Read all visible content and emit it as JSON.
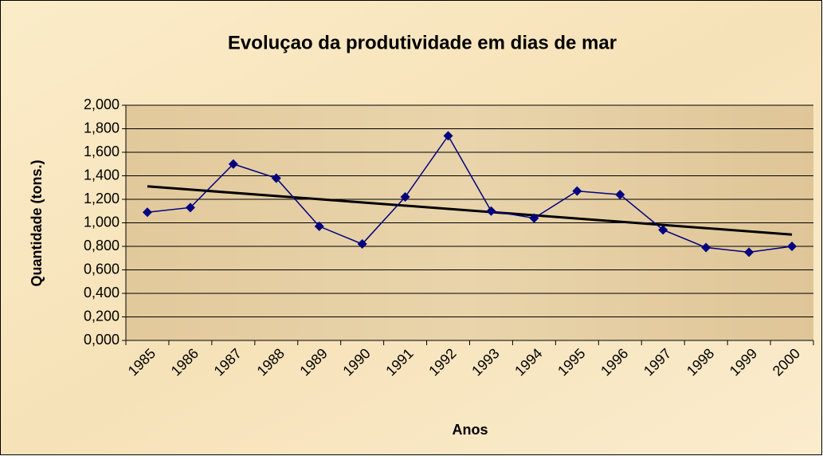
{
  "chart_data": {
    "type": "line",
    "title": "Evoluçao da produtividade em dias de mar",
    "x_label": "Anos",
    "y_label": "Quantidade (tons.)",
    "categories": [
      "1985",
      "1986",
      "1987",
      "1988",
      "1989",
      "1990",
      "1991",
      "1992",
      "1993",
      "1994",
      "1995",
      "1996",
      "1997",
      "1998",
      "1999",
      "2000"
    ],
    "series": [
      {
        "color": "#000080",
        "values": [
          1.09,
          1.13,
          1.5,
          1.38,
          0.97,
          0.82,
          1.22,
          1.74,
          1.1,
          1.04,
          1.27,
          1.24,
          0.94,
          0.79,
          0.75,
          0.8
        ]
      }
    ],
    "trendline": {
      "color": "#000000",
      "values": [
        1.31,
        0.9
      ]
    },
    "ylim": [
      0,
      2
    ],
    "yticks": [
      {
        "value": 0,
        "label": "0,000"
      },
      {
        "value": 0.2,
        "label": "0,200"
      },
      {
        "value": 0.4,
        "label": "0,400"
      },
      {
        "value": 0.6,
        "label": "0,600"
      },
      {
        "value": 0.8,
        "label": "0,800"
      },
      {
        "value": 1,
        "label": "1,000"
      },
      {
        "value": 1.2,
        "label": "1,200"
      },
      {
        "value": 1.4,
        "label": "1,400"
      },
      {
        "value": 1.6,
        "label": "1,600"
      },
      {
        "value": 1.8,
        "label": "1,800"
      },
      {
        "value": 2,
        "label": "2,000"
      }
    ],
    "grid": true
  }
}
